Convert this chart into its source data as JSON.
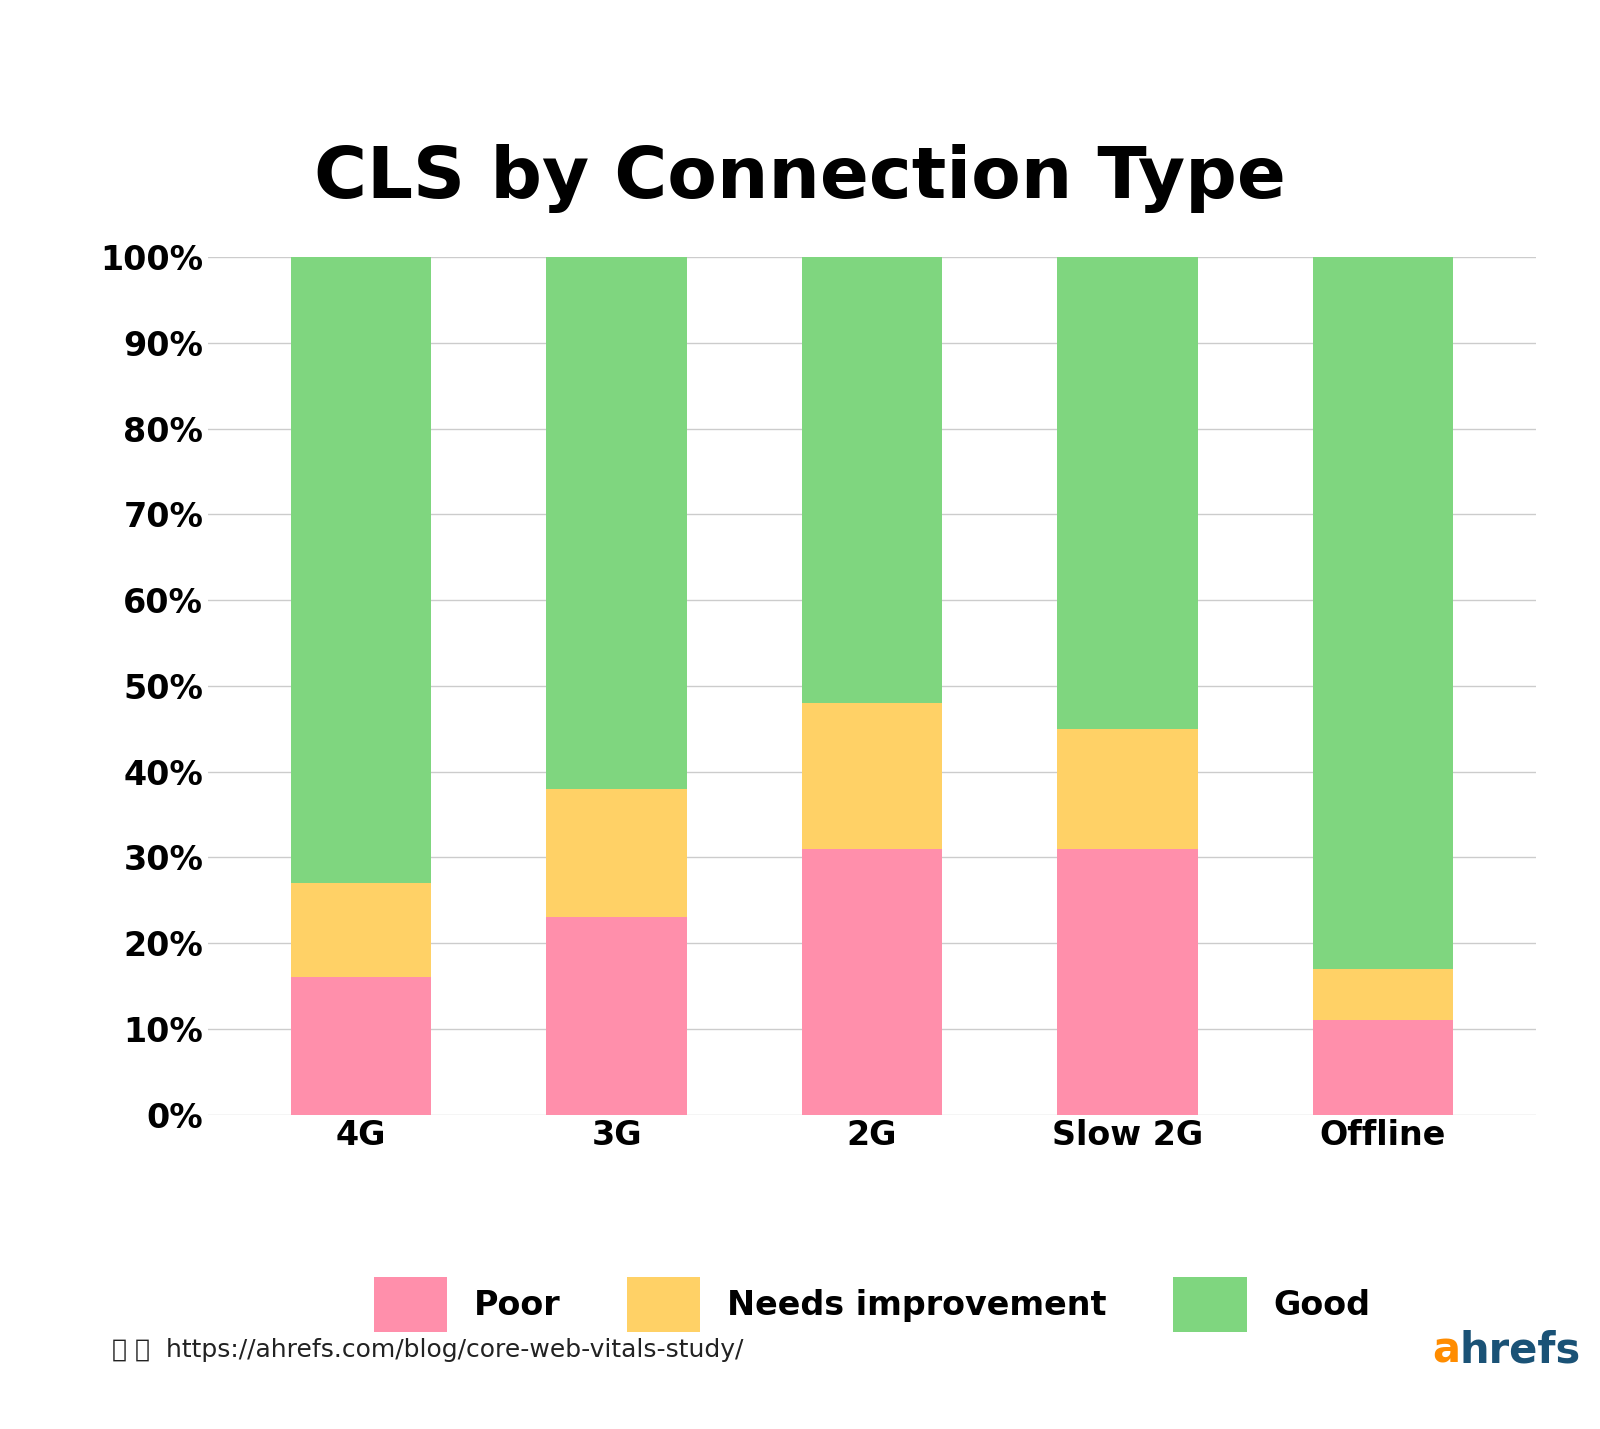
{
  "title": "CLS by Connection Type",
  "categories": [
    "4G",
    "3G",
    "2G",
    "Slow 2G",
    "Offline"
  ],
  "poor": [
    16,
    23,
    31,
    31,
    11
  ],
  "needs_improvement": [
    11,
    15,
    17,
    14,
    6
  ],
  "good": [
    73,
    62,
    52,
    55,
    83
  ],
  "color_poor": "#FF8FAB",
  "color_needs": "#FFD166",
  "color_good": "#7FD67F",
  "background": "#FFFFFF",
  "grid_color": "#CCCCCC",
  "title_fontsize": 52,
  "tick_fontsize": 24,
  "legend_fontsize": 24,
  "bar_width": 0.55,
  "yticks": [
    0,
    10,
    20,
    30,
    40,
    50,
    60,
    70,
    80,
    90,
    100
  ],
  "legend_labels": [
    "Poor",
    "Needs improvement",
    "Good"
  ],
  "url_text": "https://ahrefs.com/blog/core-web-vitals-study/",
  "ahrefs_color_a": "#FF8C00",
  "ahrefs_color_rest": "#1A5276"
}
